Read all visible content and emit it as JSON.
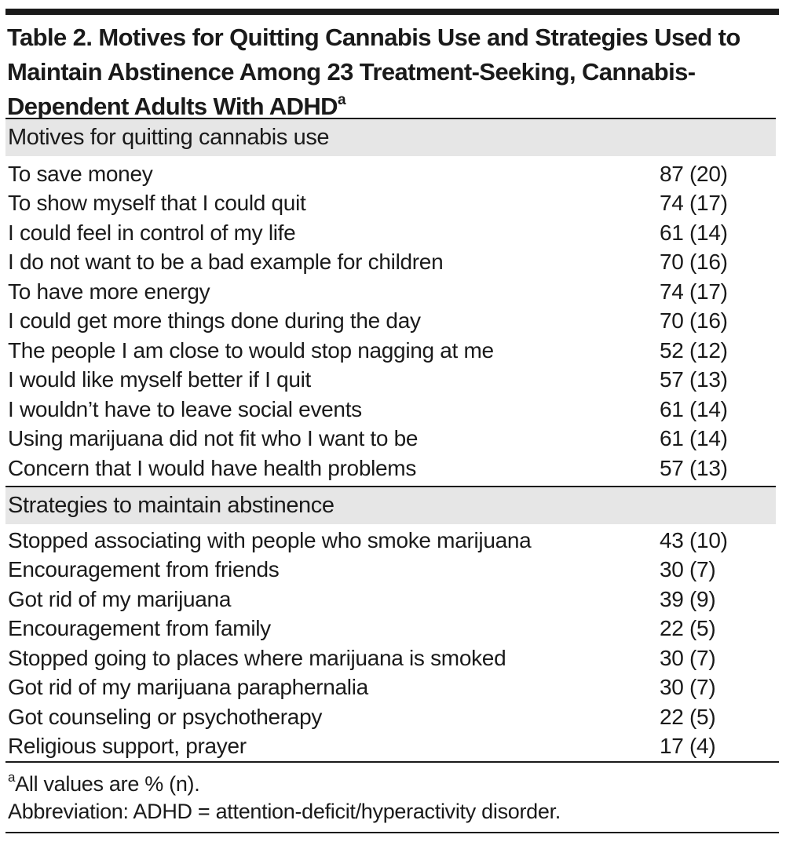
{
  "title": {
    "main": "Table 2. Motives for Quitting Cannabis Use and Strategies Used to Maintain Abstinence Among 23 Treatment-Seeking, Cannabis-Dependent Adults With ADHD",
    "superscript": "a"
  },
  "sections": [
    {
      "heading": "Motives for quitting cannabis use",
      "rows": [
        {
          "label": "To save money",
          "value": "87 (20)"
        },
        {
          "label": "To show myself that I could quit",
          "value": "74 (17)"
        },
        {
          "label": "I could feel in control of my life",
          "value": "61 (14)"
        },
        {
          "label": "I do not want to be a bad example for children",
          "value": "70 (16)"
        },
        {
          "label": "To have more energy",
          "value": "74 (17)"
        },
        {
          "label": "I could get more things done during the day",
          "value": "70 (16)"
        },
        {
          "label": "The people I am close to would stop nagging at me",
          "value": "52 (12)"
        },
        {
          "label": "I would like myself better if I quit",
          "value": "57 (13)"
        },
        {
          "label": "I wouldn’t have to leave social events",
          "value": "61 (14)"
        },
        {
          "label": "Using marijuana did not fit who I want to be",
          "value": "61 (14)"
        },
        {
          "label": "Concern that I would have health problems",
          "value": "57 (13)"
        }
      ]
    },
    {
      "heading": "Strategies to maintain abstinence",
      "rows": [
        {
          "label": "Stopped associating with people who smoke marijuana",
          "value": "43 (10)"
        },
        {
          "label": "Encouragement from friends",
          "value": "30 (7)"
        },
        {
          "label": "Got rid of my marijuana",
          "value": "39 (9)"
        },
        {
          "label": "Encouragement from family",
          "value": "22 (5)"
        },
        {
          "label": "Stopped going to places where marijuana is smoked",
          "value": "30 (7)"
        },
        {
          "label": "Got rid of my marijuana paraphernalia",
          "value": "30 (7)"
        },
        {
          "label": "Got counseling or psychotherapy",
          "value": "22 (5)"
        },
        {
          "label": "Religious support, prayer",
          "value": "17 (4)"
        }
      ]
    }
  ],
  "footnotes": {
    "note_marker": "a",
    "note_text": "All values are % (n).",
    "abbreviation": "Abbreviation: ADHD = attention-deficit/hyperactivity disorder."
  }
}
